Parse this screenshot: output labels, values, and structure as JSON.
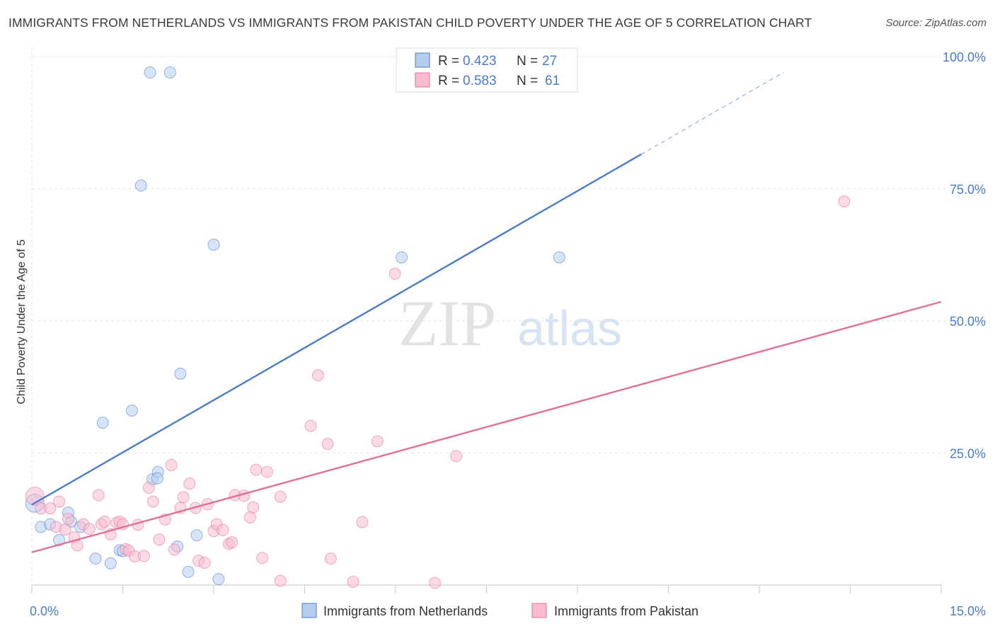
{
  "title": "IMMIGRANTS FROM NETHERLANDS VS IMMIGRANTS FROM PAKISTAN CHILD POVERTY UNDER THE AGE OF 5 CORRELATION CHART",
  "source": "Source: ZipAtlas.com",
  "watermark": {
    "zip": "ZIP",
    "atlas": "atlas"
  },
  "chart_data": {
    "type": "scatter",
    "title": "IMMIGRANTS FROM NETHERLANDS VS IMMIGRANTS FROM PAKISTAN CHILD POVERTY UNDER THE AGE OF 5 CORRELATION CHART",
    "xlabel": "",
    "ylabel": "Child Poverty Under the Age of 5",
    "xlim": [
      0,
      15
    ],
    "ylim": [
      0,
      100
    ],
    "x_tick_labels": [
      "0.0%",
      "15.0%"
    ],
    "y_ticks": [
      25,
      50,
      75,
      100
    ],
    "y_tick_labels": [
      "25.0%",
      "50.0%",
      "75.0%",
      "100.0%"
    ],
    "grid": true,
    "legend_position": "top-center",
    "series": [
      {
        "name": "Immigrants from Netherlands",
        "color": "#4a7cc9",
        "fill": "#b7cdf0",
        "R_label": "R =",
        "R": "0.423",
        "N_label": "N =",
        "N": "27",
        "trend": {
          "x0": 0,
          "y0": 15.2,
          "x1": 10.05,
          "y1": 81.5,
          "dash_x1": 12.4,
          "dash_y1": 97
        },
        "points": [
          [
            0.05,
            15.5
          ],
          [
            0.15,
            11
          ],
          [
            0.3,
            11.5
          ],
          [
            0.45,
            8.5
          ],
          [
            0.6,
            13.7
          ],
          [
            0.65,
            12
          ],
          [
            0.8,
            11
          ],
          [
            1.05,
            5
          ],
          [
            1.17,
            30.7
          ],
          [
            1.3,
            4.1
          ],
          [
            1.45,
            6.6
          ],
          [
            1.5,
            6.4
          ],
          [
            1.65,
            33
          ],
          [
            1.8,
            75.6
          ],
          [
            1.95,
            97
          ],
          [
            1.99,
            20
          ],
          [
            2.08,
            21.4
          ],
          [
            2.28,
            97
          ],
          [
            2.4,
            7.3
          ],
          [
            2.45,
            40
          ],
          [
            2.58,
            2.5
          ],
          [
            2.72,
            9.4
          ],
          [
            3.08,
            1.1
          ],
          [
            3.0,
            64.4
          ],
          [
            6.1,
            62
          ],
          [
            8.7,
            62
          ],
          [
            2.07,
            20.2
          ]
        ]
      },
      {
        "name": "Immigrants from Pakistan",
        "color": "#e07099",
        "fill": "#f7bcd0",
        "R_label": "R =",
        "R": "0.583",
        "N_label": "N =",
        "N": "61",
        "trend": {
          "x0": 0,
          "y0": 6.2,
          "x1": 15,
          "y1": 53.6
        },
        "points": [
          [
            0.05,
            16.8
          ],
          [
            0.15,
            14.5
          ],
          [
            0.3,
            14.5
          ],
          [
            0.4,
            11
          ],
          [
            0.45,
            15.8
          ],
          [
            0.55,
            10.5
          ],
          [
            0.6,
            12.5
          ],
          [
            0.7,
            9
          ],
          [
            0.75,
            7.5
          ],
          [
            0.85,
            11.5
          ],
          [
            0.95,
            10.6
          ],
          [
            1.1,
            17
          ],
          [
            1.15,
            11.5
          ],
          [
            1.2,
            12
          ],
          [
            1.3,
            9.6
          ],
          [
            1.4,
            11.8
          ],
          [
            1.45,
            12
          ],
          [
            1.5,
            11.5
          ],
          [
            1.55,
            6.8
          ],
          [
            1.6,
            6.5
          ],
          [
            1.7,
            5.4
          ],
          [
            1.75,
            11.4
          ],
          [
            1.85,
            5.5
          ],
          [
            1.93,
            18.4
          ],
          [
            2.0,
            15.8
          ],
          [
            2.1,
            8.6
          ],
          [
            2.2,
            12.4
          ],
          [
            2.3,
            22.7
          ],
          [
            2.35,
            6.7
          ],
          [
            2.45,
            14.6
          ],
          [
            2.5,
            16.6
          ],
          [
            2.6,
            19.2
          ],
          [
            2.7,
            14.6
          ],
          [
            2.75,
            4.6
          ],
          [
            2.85,
            4.2
          ],
          [
            2.9,
            15.3
          ],
          [
            3.0,
            10.2
          ],
          [
            3.05,
            11.5
          ],
          [
            3.15,
            10.4
          ],
          [
            3.25,
            7.8
          ],
          [
            3.3,
            8.1
          ],
          [
            3.35,
            17
          ],
          [
            3.5,
            16.9
          ],
          [
            3.6,
            12.8
          ],
          [
            3.65,
            14.7
          ],
          [
            3.7,
            21.8
          ],
          [
            3.8,
            5.1
          ],
          [
            3.88,
            21.4
          ],
          [
            4.1,
            0.8
          ],
          [
            4.1,
            16.7
          ],
          [
            4.6,
            30.1
          ],
          [
            4.72,
            39.7
          ],
          [
            4.88,
            26.7
          ],
          [
            4.93,
            5
          ],
          [
            5.3,
            0.6
          ],
          [
            5.45,
            11.9
          ],
          [
            5.7,
            27.2
          ],
          [
            5.99,
            58.9
          ],
          [
            6.65,
            0.4
          ],
          [
            7.0,
            24.4
          ],
          [
            13.4,
            72.6
          ]
        ]
      }
    ]
  }
}
